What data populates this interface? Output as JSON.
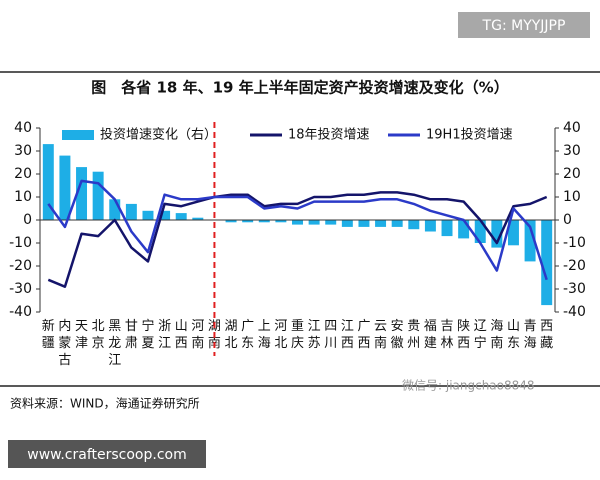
{
  "chart_data": {
    "type": "bar-line",
    "title": "图　各省 18 年、19 年上半年固定资产投资增速及变化（%）",
    "source": "资料来源：WIND，海通证券研究所",
    "watermark_top": "TG: MYYJJPP",
    "watermark_wechat": "微信号: jiangchao8848",
    "watermark_bottom": "www.crafterscoop.com",
    "categories": [
      "新疆",
      "内蒙古",
      "天津",
      "北京",
      "黑龙江",
      "甘肃",
      "宁夏",
      "浙江",
      "山西",
      "河南",
      "湖南",
      "湖北",
      "广东",
      "上海",
      "河北",
      "重庆",
      "江苏",
      "四川",
      "江西",
      "广西",
      "云南",
      "安徽",
      "贵州",
      "福建",
      "吉林",
      "陕西",
      "辽宁",
      "海南",
      "山东",
      "青海",
      "西藏"
    ],
    "series": [
      {
        "name": "投资增速变化（右）",
        "kind": "bar",
        "axis": "y2",
        "color": "#1eaee6",
        "values": [
          33,
          28,
          23,
          21,
          9,
          7,
          4,
          4,
          3,
          1,
          0,
          -1,
          -1,
          -1,
          -1,
          -2,
          -2,
          -2,
          -3,
          -3,
          -3,
          -3,
          -4,
          -5,
          -7,
          -8,
          -10,
          -12,
          -11,
          -18,
          -37
        ]
      },
      {
        "name": "18年投资增速",
        "kind": "line",
        "color": "#14146a",
        "values": [
          -26,
          -29,
          -6,
          -7,
          0,
          -12,
          -18,
          7,
          6,
          8,
          10,
          11,
          11,
          6,
          7,
          7,
          10,
          10,
          11,
          11,
          12,
          12,
          11,
          9,
          9,
          8,
          0,
          -10,
          6,
          7,
          10
        ]
      },
      {
        "name": "19H1投资增速",
        "kind": "line",
        "color": "#2b3ac8",
        "values": [
          7,
          -3,
          17,
          16,
          9,
          -5,
          -14,
          11,
          9,
          9,
          10,
          10,
          10,
          5,
          6,
          5,
          8,
          8,
          8,
          8,
          9,
          9,
          7,
          4,
          2,
          0,
          -10,
          -22,
          5,
          -3,
          -26
        ]
      }
    ],
    "ylim": [
      -40,
      40
    ],
    "yticks": [
      -40,
      -30,
      -20,
      -10,
      0,
      10,
      20,
      30,
      40
    ],
    "y2lim": [
      -40,
      40
    ],
    "y2ticks": [
      -40,
      -30,
      -20,
      -10,
      0,
      10,
      20,
      30,
      40
    ],
    "reference_line": {
      "category": "湖南",
      "color": "#e02020",
      "style": "dashed"
    }
  }
}
